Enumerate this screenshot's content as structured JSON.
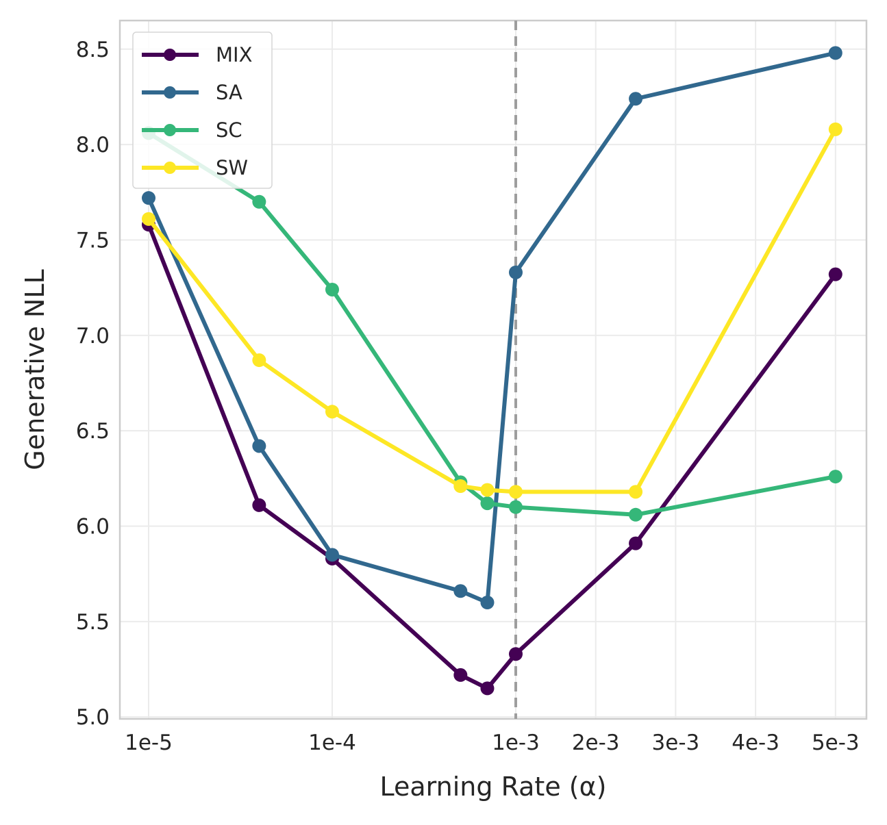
{
  "chart_data": {
    "type": "line",
    "title": "",
    "xlabel": "Learning Rate (α)",
    "ylabel": "Generative NLL",
    "x_scale": "categorical-mixed",
    "x_ticks": [
      "1e-5",
      "1e-4",
      "1e-3",
      "2e-3",
      "3e-3",
      "4e-3",
      "5e-3"
    ],
    "y_ticks": [
      "5.0",
      "5.5",
      "6.0",
      "6.5",
      "7.0",
      "7.5",
      "8.0",
      "8.5"
    ],
    "ylim": [
      4.99,
      8.65
    ],
    "grid": true,
    "legend_position": "top-left",
    "reference_line": {
      "x": "1e-3",
      "style": "dashed",
      "color": "#9e9e9e"
    },
    "x": [
      1e-05,
      4e-05,
      0.0001,
      0.0005,
      0.0007,
      0.001,
      0.0025,
      0.005
    ],
    "series": [
      {
        "name": "MIX",
        "color": "#440154",
        "values": [
          7.58,
          6.11,
          5.83,
          5.22,
          5.15,
          5.33,
          5.91,
          7.32
        ]
      },
      {
        "name": "SA",
        "color": "#31688e",
        "values": [
          7.72,
          6.42,
          5.85,
          5.66,
          5.6,
          7.33,
          8.24,
          8.48
        ]
      },
      {
        "name": "SC",
        "color": "#35b779",
        "values": [
          8.06,
          7.7,
          7.24,
          6.23,
          6.12,
          6.1,
          6.06,
          6.26
        ]
      },
      {
        "name": "SW",
        "color": "#fde725",
        "values": [
          7.61,
          6.87,
          6.6,
          6.21,
          6.19,
          6.18,
          6.18,
          8.08
        ]
      }
    ]
  }
}
